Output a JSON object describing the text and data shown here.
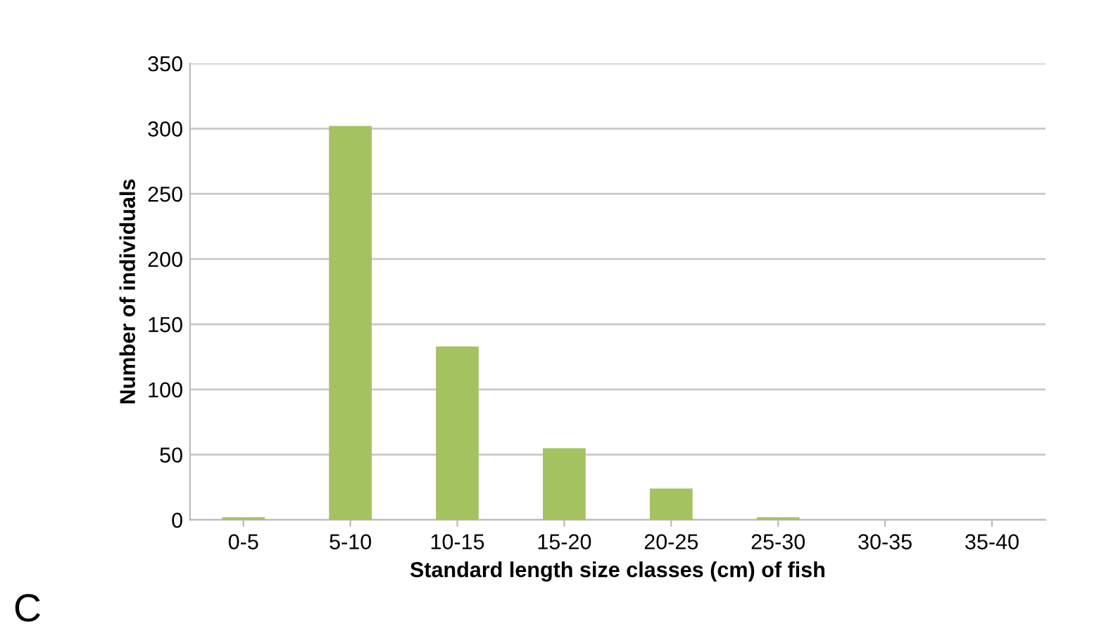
{
  "chart_data": {
    "type": "bar",
    "xlabel": "Standard length size classes (cm) of fish",
    "ylabel": "Number of individuals",
    "categories": [
      "0-5",
      "5-10",
      "10-15",
      "15-20",
      "20-25",
      "25-30",
      "30-35",
      "35-40"
    ],
    "values": [
      2,
      302,
      133,
      55,
      24,
      2,
      0,
      0
    ],
    "color": "#a5c261",
    "ylim": [
      0,
      350
    ],
    "yticks": [
      0,
      50,
      100,
      150,
      200,
      250,
      300,
      350
    ],
    "grid": "y",
    "annotations": [
      "C"
    ]
  }
}
